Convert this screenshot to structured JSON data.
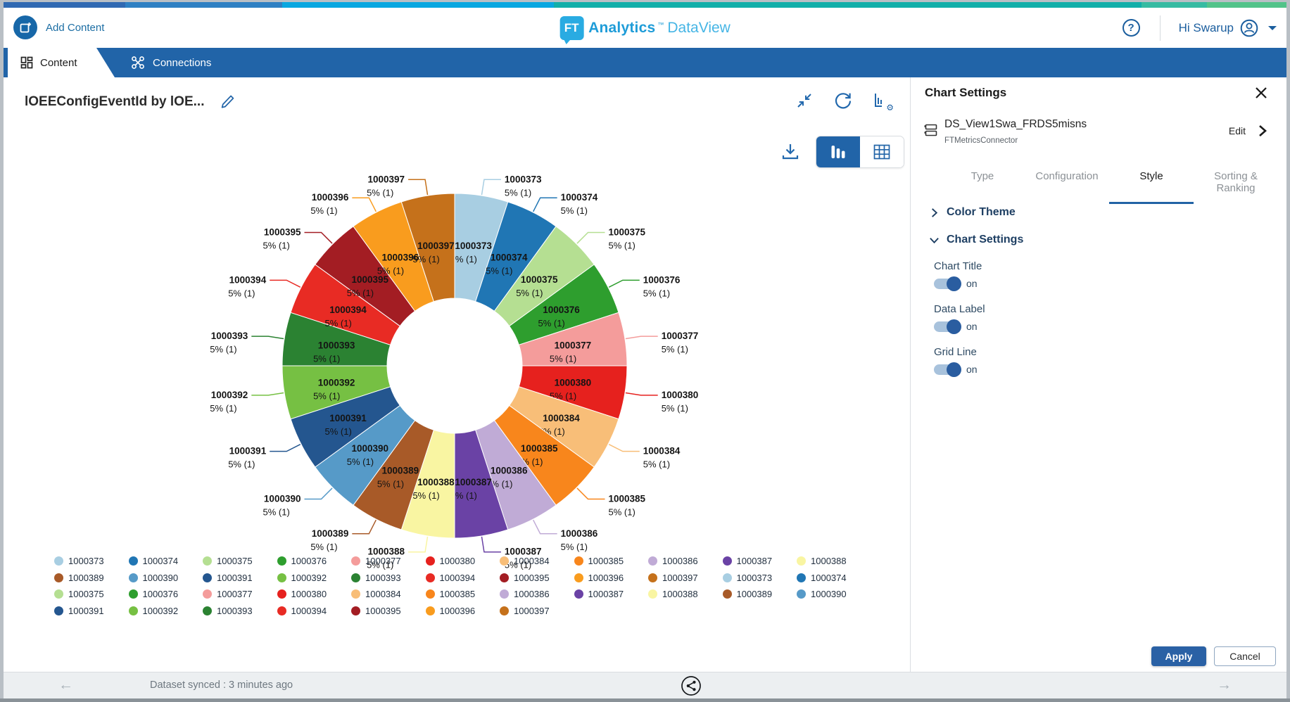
{
  "theme": {
    "accent_blue": "#2164A8",
    "logo_cyan": "#29ABE2",
    "link_blue": "#1C6EA4",
    "strip_colors": [
      "#3069B2",
      "#2E80C3",
      "#09A7E0",
      "#12AFA9",
      "#36BBA2",
      "#52C389"
    ]
  },
  "header": {
    "add_content_label": "Add Content",
    "logo": {
      "mark": "FT",
      "brand": "Analytics",
      "tm": "™",
      "product": "DataView"
    },
    "user_greeting": "Hi Swarup"
  },
  "tabs": {
    "content": "Content",
    "connections": "Connections"
  },
  "chart_data": {
    "type": "pie",
    "subtype": "donut",
    "title": "lOEEConfigEventId by lOE...",
    "categories": [
      "1000373",
      "1000374",
      "1000375",
      "1000376",
      "1000377",
      "1000380",
      "1000384",
      "1000385",
      "1000386",
      "1000387",
      "1000388",
      "1000389",
      "1000390",
      "1000391",
      "1000392",
      "1000393",
      "1000394",
      "1000395",
      "1000396",
      "1000397"
    ],
    "values": [
      5,
      5,
      5,
      5,
      5,
      5,
      5,
      5,
      5,
      5,
      5,
      5,
      5,
      5,
      5,
      5,
      5,
      5,
      5,
      5
    ],
    "counts": [
      1,
      1,
      1,
      1,
      1,
      1,
      1,
      1,
      1,
      1,
      1,
      1,
      1,
      1,
      1,
      1,
      1,
      1,
      1,
      1
    ],
    "data_label": "5% (1)",
    "colors": {
      "1000373": "#A8CEE2",
      "1000374": "#2076B4",
      "1000375": "#B5DF92",
      "1000376": "#2E9E2E",
      "1000377": "#F49C9B",
      "1000380": "#E6211E",
      "1000384": "#F8BE78",
      "1000385": "#F8861C",
      "1000386": "#C0ABD6",
      "1000387": "#6A42A5",
      "1000388": "#F9F5A2",
      "1000389": "#A85A28",
      "1000390": "#569AC8",
      "1000391": "#24568F",
      "1000392": "#76C043",
      "1000393": "#2B8232",
      "1000394": "#E82B24",
      "1000395": "#A31D23",
      "1000396": "#F99C1E",
      "1000397": "#C5711B"
    },
    "legend_position": "bottom",
    "legend_order": [
      "1000373",
      "1000374",
      "1000375",
      "1000376",
      "1000377",
      "1000380",
      "1000384",
      "1000385",
      "1000386",
      "1000387",
      "1000388",
      "1000389",
      "1000390",
      "1000391",
      "1000392",
      "1000393",
      "1000394",
      "1000395",
      "1000396",
      "1000397",
      "1000373",
      "1000374",
      "1000375",
      "1000376",
      "1000377",
      "1000380",
      "1000384",
      "1000385",
      "1000386",
      "1000387",
      "1000388",
      "1000389",
      "1000390",
      "1000391",
      "1000392",
      "1000393",
      "1000394",
      "1000395",
      "1000396",
      "1000397"
    ]
  },
  "panel": {
    "title": "Chart Settings",
    "dataset": {
      "name": "DS_View1Swa_FRDS5misns",
      "connector": "FTMetricsConnector",
      "edit_label": "Edit"
    },
    "tabs": [
      {
        "label": "Type"
      },
      {
        "label": "Configuration"
      },
      {
        "label": "Style"
      },
      {
        "label": "Sorting & Ranking"
      }
    ],
    "sections": [
      {
        "label": "Color Theme",
        "state": "collapsed"
      },
      {
        "label": "Chart Settings",
        "state": "expanded"
      }
    ],
    "toggles": [
      {
        "label": "Chart Title",
        "state": "on"
      },
      {
        "label": "Data Label",
        "state": "on"
      },
      {
        "label": "Grid Line",
        "state": "on"
      }
    ],
    "apply_label": "Apply",
    "cancel_label": "Cancel"
  },
  "footer": {
    "status": "Dataset synced : 3 minutes ago"
  }
}
